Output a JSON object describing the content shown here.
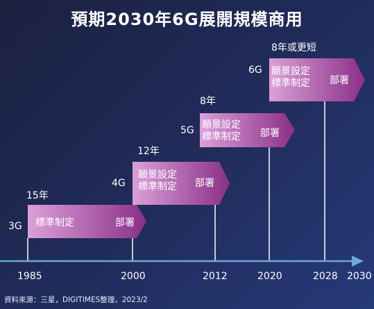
{
  "title": "預期2030年6G展開規模商用",
  "source": "資料來源：三星，DIGITIMES整理，2023/2",
  "axis_years": [
    "1985",
    "2000",
    "2012",
    "2020",
    "2028",
    "2030"
  ],
  "generations": [
    {
      "gen": "3G",
      "duration": "15年",
      "text_left": "標準制定",
      "text_right": "部署"
    },
    {
      "gen": "4G",
      "duration": "12年",
      "text_left": "願景設定\n標準制定",
      "text_right": "部署"
    },
    {
      "gen": "5G",
      "duration": "8年",
      "text_left": "願景設定\n標準制定",
      "text_right": "部署"
    },
    {
      "gen": "6G",
      "duration": "8年或更短",
      "text_left": "願景設定\n標準制定",
      "text_right": "部署"
    }
  ],
  "colors": {
    "arrow_light": "#dba0d8",
    "arrow_dark": "#8a2f87",
    "axis": "#6aa8d8"
  }
}
